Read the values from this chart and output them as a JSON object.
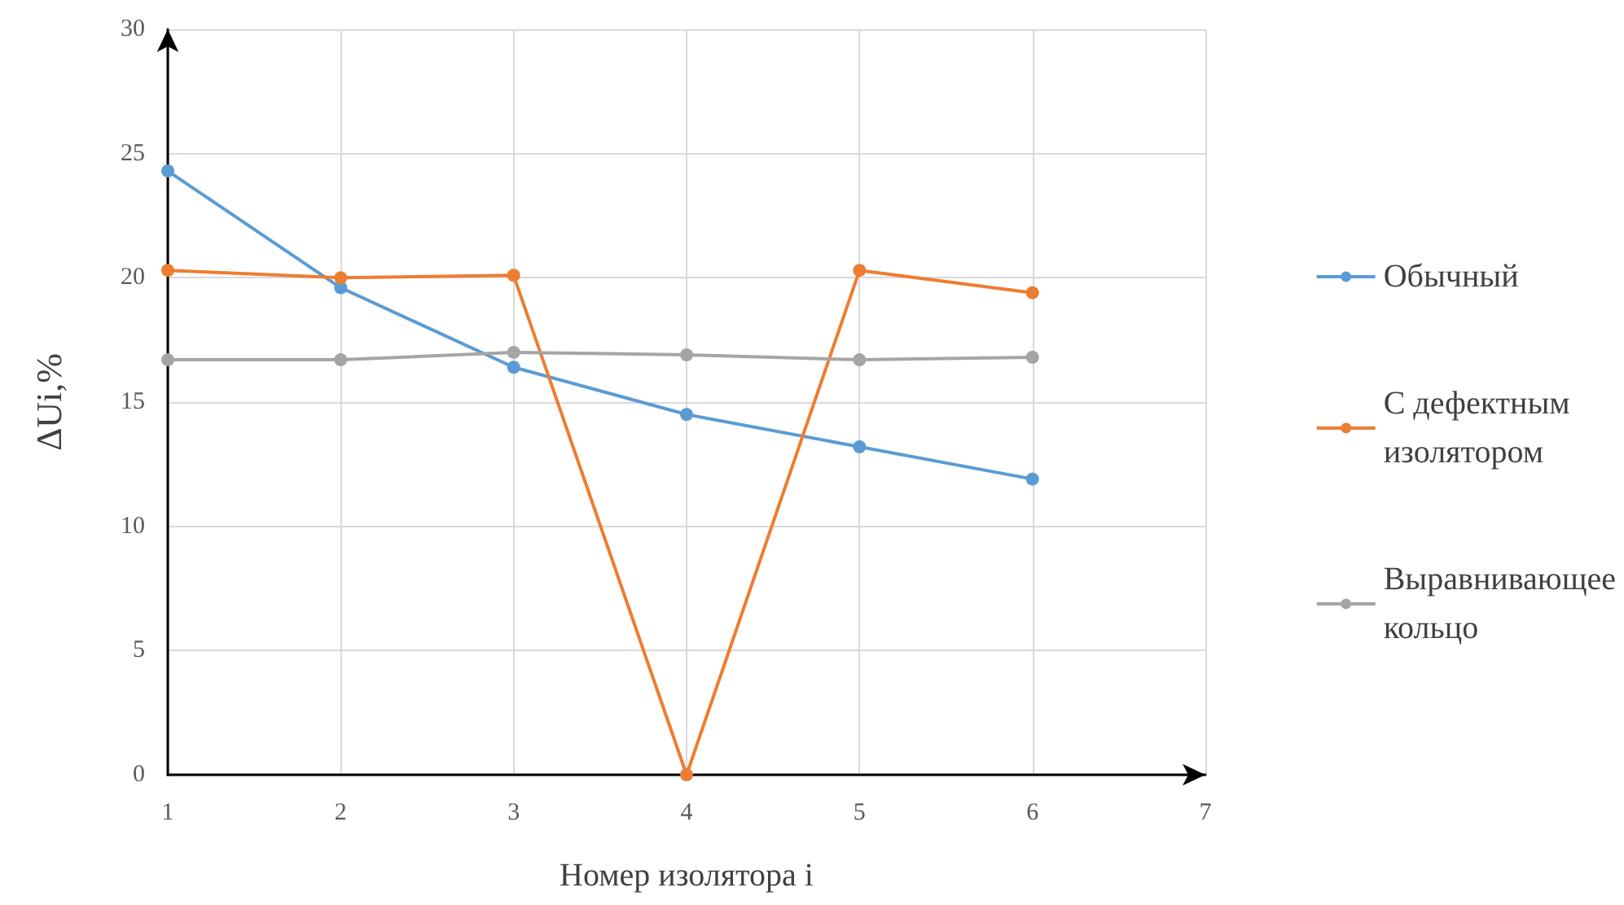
{
  "chart_data": {
    "type": "line",
    "xlabel": "Номер изолятора i",
    "ylabel": "ΔUi,%",
    "x": [
      1,
      2,
      3,
      4,
      5,
      6
    ],
    "xlim": [
      1,
      7
    ],
    "xticks": [
      1,
      2,
      3,
      4,
      5,
      6,
      7
    ],
    "ylim": [
      0,
      30
    ],
    "yticks": [
      0,
      5,
      10,
      15,
      20,
      25,
      30
    ],
    "grid": true,
    "legend": "right",
    "marker": "circle",
    "line_style": "solid",
    "series": [
      {
        "name": "Обычный",
        "color": "#5b9bd5",
        "values": [
          24.3,
          19.6,
          16.4,
          14.5,
          13.2,
          11.9
        ]
      },
      {
        "name": "С дефектным изолятором",
        "color": "#ed7d31",
        "values": [
          20.3,
          20.0,
          20.1,
          0,
          20.3,
          19.4
        ]
      },
      {
        "name": "Выравнивающее кольцо",
        "color": "#a5a5a5",
        "values": [
          16.7,
          16.7,
          17.0,
          16.9,
          16.7,
          16.8
        ]
      }
    ]
  }
}
